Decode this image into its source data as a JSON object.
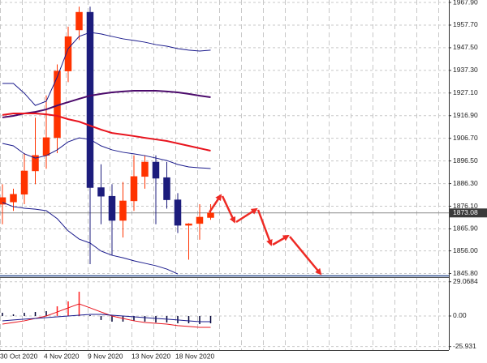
{
  "chart_data": [
    {
      "type": "candlestick",
      "categories": [
        "30 Oct 2020",
        null,
        null,
        null,
        "4 Nov 2020",
        null,
        null,
        null,
        "9 Nov 2020",
        null,
        null,
        null,
        "13 Nov 2020",
        null,
        null,
        null,
        "18 Nov 2020",
        null,
        null,
        null
      ],
      "open": [
        1877,
        1878,
        1881.5,
        1892,
        1899,
        1907,
        1937,
        1955.5,
        1963.5,
        1884.5,
        1880.6,
        1869.7,
        1878.5,
        1889.5,
        1896,
        1889,
        1879,
        1867.5,
        1868.3,
        1871
      ],
      "high": [
        1886,
        1884,
        1900,
        1916,
        1926,
        1940,
        1957,
        1966,
        1966,
        1895,
        1886,
        1887,
        1899,
        1899,
        1899,
        1896,
        1882,
        1868.5,
        1877,
        1877
      ],
      "low": [
        1868,
        1874,
        1877,
        1886,
        1893,
        1900,
        1932,
        1951,
        1850,
        1868,
        1854,
        1862,
        1874,
        1884,
        1868,
        1875,
        1864,
        1852,
        1861,
        1870
      ],
      "close": [
        1880,
        1881.5,
        1892,
        1899,
        1907,
        1937,
        1952.5,
        1963.5,
        1884.5,
        1880.6,
        1869.7,
        1878.5,
        1889.5,
        1896,
        1888.7,
        1879,
        1867.5,
        1868.2,
        1871.2,
        1873.1
      ],
      "bull_color": "#ff3300",
      "bear_color": "#1c1c7c",
      "series": [
        {
          "color": "#1a1a8c",
          "width": 1,
          "values": [
            1931.4,
            1931.4,
            1927.0,
            1921.5,
            1923.4,
            1934.3,
            1947.1,
            1952.6,
            1954.4,
            1953.7,
            1952.6,
            1951.5,
            1950.8,
            1950.0,
            1948.9,
            1948.2,
            1947.1,
            1946.4,
            1946.0,
            1946.4
          ]
        },
        {
          "color": "#1a1a8c",
          "width": 1,
          "values": [
            1904.4,
            1903.3,
            1899.7,
            1897.8,
            1898.9,
            1901.5,
            1905.1,
            1906.9,
            1906.2,
            1903.3,
            1901.5,
            1900.4,
            1899.7,
            1898.9,
            1897.8,
            1896.7,
            1894.9,
            1893.8,
            1893.4,
            1893.1
          ]
        },
        {
          "color": "#1a1a8c",
          "width": 1,
          "values": [
            1877.8,
            1875.9,
            1875.2,
            1874.8,
            1874.1,
            1870.5,
            1865.0,
            1861.3,
            1859.5,
            1855.9,
            1854.0,
            1852.9,
            1851.5,
            1850.4,
            1849.3,
            1847.8,
            1845.6,
            null,
            null,
            null
          ]
        },
        {
          "color": "#4b0a6b",
          "width": 2,
          "values": [
            1916.1,
            1916.8,
            1917.9,
            1918.6,
            1919.7,
            1921.5,
            1923.0,
            1924.5,
            1925.9,
            1926.7,
            1927.4,
            1927.8,
            1928.1,
            1928.1,
            1928.1,
            1927.8,
            1927.4,
            1926.7,
            1925.9,
            1925.2
          ]
        },
        {
          "color": "#e8141e",
          "width": 2,
          "values": [
            1917.2,
            1917.9,
            1917.9,
            1917.9,
            1917.5,
            1916.8,
            1915.3,
            1914.2,
            1912.4,
            1910.6,
            1909.1,
            1908.4,
            1907.7,
            1906.9,
            1906.2,
            1905.5,
            1904.4,
            1903.3,
            1902.2,
            1901.1
          ]
        }
      ],
      "ylim": [
        1844.9,
        1969.0
      ],
      "yticks": [
        {
          "value": 1967.9,
          "label": "1967.90"
        },
        {
          "value": 1957.7,
          "label": "1957.70"
        },
        {
          "value": 1947.5,
          "label": "1947.50"
        },
        {
          "value": 1937.3,
          "label": "1937.30"
        },
        {
          "value": 1927.1,
          "label": "1927.10"
        },
        {
          "value": 1916.9,
          "label": "1916.90"
        },
        {
          "value": 1906.7,
          "label": "1906.70"
        },
        {
          "value": 1896.5,
          "label": "1896.50"
        },
        {
          "value": 1886.3,
          "label": "1886.30"
        },
        {
          "value": 1876.1,
          "label": "1876.10"
        },
        {
          "value": 1865.9,
          "label": "1865.90"
        },
        {
          "value": 1856,
          "label": "1856.00"
        },
        {
          "value": 1845.8,
          "label": "1845.80"
        }
      ],
      "last_price": 1873.08,
      "grid": true
    },
    {
      "type": "bar",
      "values": [
        2.7,
        1.4,
        2.7,
        3.4,
        4.1,
        8.2,
        12.4,
        20.6,
        0.7,
        -3.4,
        -4.8,
        -4.8,
        -4.1,
        -4.8,
        -5.5,
        -5.5,
        -6.2,
        -6.2,
        -6.9,
        -6.2
      ],
      "bar_colors": [
        "#000033",
        "#000033",
        "#000033",
        "#000033",
        "#000033",
        "#ff2020",
        "#ff2020",
        "#ff2020",
        "#000033",
        "#000033",
        "#000033",
        "#000033",
        "#000033",
        "#000033",
        "#000033",
        "#000033",
        "#000033",
        "#000033",
        "#000033",
        "#000033"
      ],
      "series": [
        {
          "color": "#e8141e",
          "width": 1,
          "values": [
            -6.9,
            -5.5,
            -4.1,
            -2.1,
            0,
            3.4,
            6.9,
            10.3,
            6.9,
            3.4,
            0,
            -2.1,
            -4.1,
            -5.5,
            -6.2,
            -6.9,
            -8.2,
            -8.9,
            -9.6,
            -9.6
          ]
        },
        {
          "color": "#1a1a8c",
          "width": 1,
          "values": [
            -4.1,
            -3.4,
            -2.7,
            -2.1,
            -1.4,
            -0.7,
            0,
            0.7,
            1.4,
            1.4,
            0.7,
            0,
            -0.7,
            -1.4,
            -2.1,
            -2.7,
            -3.4,
            -4.1,
            -4.8,
            -4.8
          ]
        }
      ],
      "ylim": [
        -28.9,
        33.0
      ],
      "yticks": [
        29.0684,
        {
          "value": 0,
          "label": "0.00"
        },
        -25.931
      ],
      "grid": true
    }
  ]
}
